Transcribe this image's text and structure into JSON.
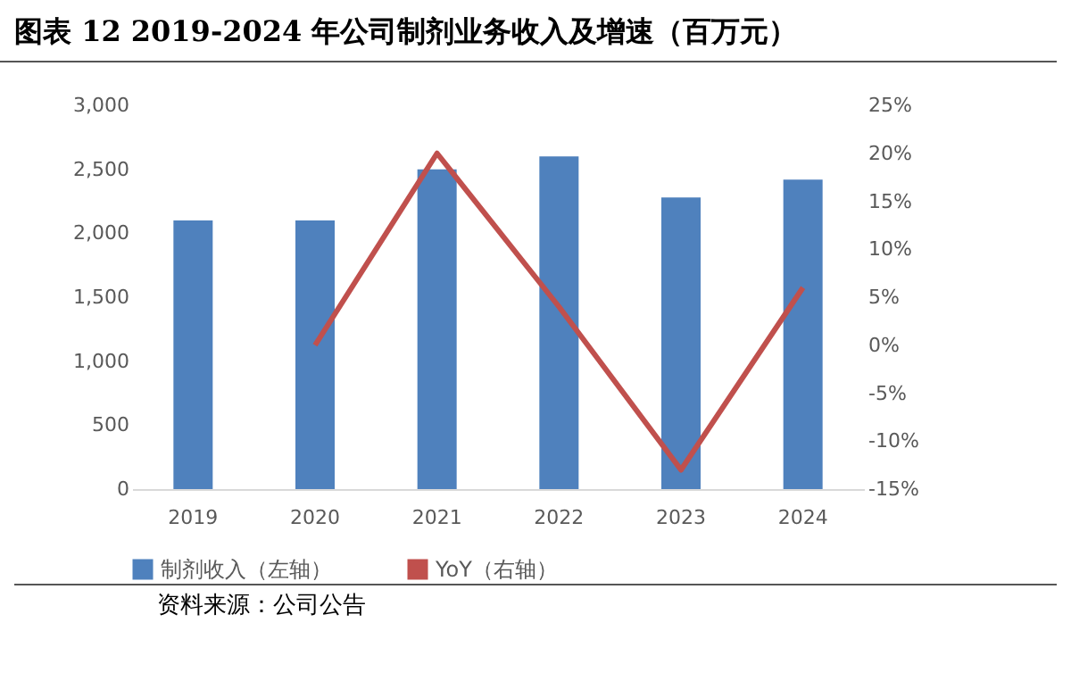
{
  "chart_data": {
    "type": "bar",
    "title": "图表 12 2019-2024 年公司制剂业务收入及增速（百万元）",
    "categories": [
      "2019",
      "2020",
      "2021",
      "2022",
      "2023",
      "2024"
    ],
    "series": [
      {
        "name": "制剂收入（左轴）",
        "color": "#4f81bd",
        "values": [
          2100,
          2100,
          2500,
          2600,
          2280,
          2420
        ]
      },
      {
        "name": "YoY（右轴）",
        "type": "line",
        "axis": "y2",
        "color": "#c0504d",
        "values": [
          null,
          0,
          20,
          4,
          -13,
          6
        ]
      }
    ],
    "ylim": [
      0,
      3000
    ],
    "yticks": [
      0,
      {
        "value": 500,
        "label": "500"
      },
      {
        "value": 1000,
        "label": "1,000"
      },
      {
        "value": 1500,
        "label": "1,500"
      },
      {
        "value": 2000,
        "label": "2,000"
      },
      {
        "value": 2500,
        "label": "2,500"
      },
      {
        "value": 3000,
        "label": "3,000"
      }
    ],
    "y2lim": [
      -15,
      25
    ],
    "y2ticks": [
      {
        "value": -15,
        "label": "-15%"
      },
      {
        "value": -10,
        "label": "-10%"
      },
      {
        "value": -5,
        "label": "-5%"
      },
      {
        "value": 0,
        "label": "0%"
      },
      {
        "value": 5,
        "label": "5%"
      },
      {
        "value": 10,
        "label": "10%"
      },
      {
        "value": 15,
        "label": "15%"
      },
      {
        "value": 20,
        "label": "20%"
      },
      {
        "value": 25,
        "label": "25%"
      }
    ],
    "grid": false,
    "legend": "bottom",
    "marker": "none",
    "line_style": "solid",
    "annotations": [
      "资料来源：公司公告"
    ]
  }
}
